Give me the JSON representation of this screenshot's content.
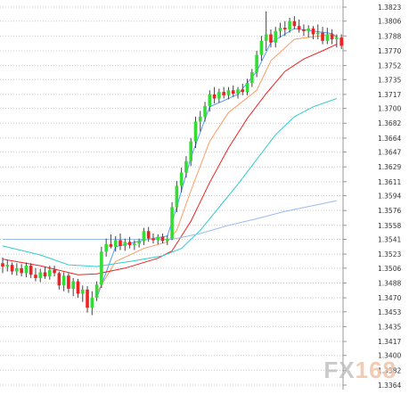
{
  "chart_data": {
    "type": "candlestick",
    "y_axis": {
      "position": "right",
      "tick_labels": [
        "1.3823",
        "1.3806",
        "1.3788",
        "1.3770",
        "1.3752",
        "1.3735",
        "1.3717",
        "1.3700",
        "1.3682",
        "1.3664",
        "1.3647",
        "1.3629",
        "1.3611",
        "1.3594",
        "1.3576",
        "1.3558",
        "1.3541",
        "1.3523",
        "1.3506",
        "1.3488",
        "1.3470",
        "1.3453",
        "1.3435",
        "1.3417",
        "1.3400",
        "1.3382",
        "1.3364"
      ],
      "ylim": [
        1.3364,
        1.3823
      ]
    },
    "grid": "horizontal dotted",
    "colors": {
      "up_body": "#33dd33",
      "down_body": "#ee2222",
      "wick": "#444444",
      "ma_fast": "#5599ff",
      "ma_mid": "#ff9966",
      "ma_slow": "#ee2222",
      "ma_long": "#33cccc",
      "ma_longest": "#99bbee",
      "grid": "#cccccc"
    },
    "candles": [
      [
        1.3512,
        1.3519,
        1.35,
        1.3508
      ],
      [
        1.3508,
        1.3516,
        1.3502,
        1.351
      ],
      [
        1.351,
        1.3513,
        1.3498,
        1.3502
      ],
      [
        1.3502,
        1.3512,
        1.3497,
        1.3506
      ],
      [
        1.3506,
        1.3511,
        1.3496,
        1.35
      ],
      [
        1.35,
        1.3513,
        1.3495,
        1.3509
      ],
      [
        1.3509,
        1.3512,
        1.3494,
        1.3498
      ],
      [
        1.3498,
        1.3506,
        1.349,
        1.3494
      ],
      [
        1.3494,
        1.3505,
        1.3489,
        1.3501
      ],
      [
        1.3501,
        1.3508,
        1.3493,
        1.3496
      ],
      [
        1.3496,
        1.3509,
        1.3492,
        1.3504
      ],
      [
        1.3504,
        1.3509,
        1.3496,
        1.35
      ],
      [
        1.35,
        1.3502,
        1.348,
        1.3485
      ],
      [
        1.3485,
        1.3501,
        1.3478,
        1.3497
      ],
      [
        1.3497,
        1.35,
        1.3476,
        1.3481
      ],
      [
        1.3481,
        1.3494,
        1.3472,
        1.349
      ],
      [
        1.349,
        1.3493,
        1.347,
        1.3475
      ],
      [
        1.3475,
        1.3485,
        1.3465,
        1.348
      ],
      [
        1.348,
        1.3484,
        1.3452,
        1.3458
      ],
      [
        1.3458,
        1.3478,
        1.3449,
        1.347
      ],
      [
        1.347,
        1.349,
        1.3466,
        1.3486
      ],
      [
        1.3486,
        1.3532,
        1.3482,
        1.3526
      ],
      [
        1.3526,
        1.3542,
        1.352,
        1.3535
      ],
      [
        1.3535,
        1.3547,
        1.353,
        1.3532
      ],
      [
        1.3532,
        1.3545,
        1.3526,
        1.354
      ],
      [
        1.354,
        1.3548,
        1.3528,
        1.3533
      ],
      [
        1.3533,
        1.3542,
        1.3527,
        1.3538
      ],
      [
        1.3538,
        1.3544,
        1.353,
        1.3534
      ],
      [
        1.3534,
        1.354,
        1.3528,
        1.3536
      ],
      [
        1.3536,
        1.3542,
        1.3531,
        1.3539
      ],
      [
        1.3539,
        1.3555,
        1.3534,
        1.3551
      ],
      [
        1.3551,
        1.3556,
        1.3538,
        1.3542
      ],
      [
        1.3542,
        1.3548,
        1.3536,
        1.354
      ],
      [
        1.354,
        1.3547,
        1.3535,
        1.3544
      ],
      [
        1.3544,
        1.3548,
        1.3536,
        1.3539
      ],
      [
        1.3539,
        1.3546,
        1.3534,
        1.3542
      ],
      [
        1.3542,
        1.3586,
        1.354,
        1.358
      ],
      [
        1.358,
        1.3612,
        1.3574,
        1.3606
      ],
      [
        1.3606,
        1.3628,
        1.3598,
        1.3622
      ],
      [
        1.3622,
        1.3642,
        1.3616,
        1.3636
      ],
      [
        1.3636,
        1.3664,
        1.363,
        1.366
      ],
      [
        1.366,
        1.369,
        1.3652,
        1.3684
      ],
      [
        1.3684,
        1.3697,
        1.3672,
        1.369
      ],
      [
        1.369,
        1.3708,
        1.3684,
        1.3703
      ],
      [
        1.3703,
        1.3722,
        1.3696,
        1.3717
      ],
      [
        1.3717,
        1.3726,
        1.3706,
        1.3712
      ],
      [
        1.3712,
        1.3724,
        1.3707,
        1.372
      ],
      [
        1.372,
        1.3726,
        1.3712,
        1.3716
      ],
      [
        1.3716,
        1.3726,
        1.3711,
        1.3722
      ],
      [
        1.3722,
        1.3728,
        1.3714,
        1.3718
      ],
      [
        1.3718,
        1.3726,
        1.3712,
        1.3723
      ],
      [
        1.3723,
        1.373,
        1.3716,
        1.372
      ],
      [
        1.372,
        1.3736,
        1.3716,
        1.3731
      ],
      [
        1.3731,
        1.3748,
        1.3726,
        1.3744
      ],
      [
        1.3744,
        1.377,
        1.3738,
        1.3765
      ],
      [
        1.3765,
        1.3788,
        1.3758,
        1.3782
      ],
      [
        1.3782,
        1.3818,
        1.377,
        1.379
      ],
      [
        1.379,
        1.3796,
        1.3774,
        1.378
      ],
      [
        1.378,
        1.3799,
        1.3774,
        1.3794
      ],
      [
        1.3794,
        1.3804,
        1.3786,
        1.3798
      ],
      [
        1.3798,
        1.3806,
        1.3788,
        1.3796
      ],
      [
        1.3796,
        1.381,
        1.3792,
        1.3806
      ],
      [
        1.3806,
        1.3812,
        1.3796,
        1.38
      ],
      [
        1.38,
        1.3808,
        1.3792,
        1.3796
      ],
      [
        1.3796,
        1.3802,
        1.3788,
        1.3794
      ],
      [
        1.3794,
        1.3801,
        1.3786,
        1.3797
      ],
      [
        1.3797,
        1.38,
        1.3784,
        1.379
      ],
      [
        1.379,
        1.3802,
        1.3784,
        1.3792
      ],
      [
        1.3792,
        1.3799,
        1.3778,
        1.3782
      ],
      [
        1.3782,
        1.3798,
        1.3778,
        1.379
      ],
      [
        1.379,
        1.3796,
        1.3778,
        1.3784
      ],
      [
        1.3784,
        1.379,
        1.3774,
        1.3786
      ],
      [
        1.3786,
        1.379,
        1.3772,
        1.3776
      ]
    ],
    "moving_averages": [
      {
        "color_key": "ma_fast",
        "values": [
          [
            20,
            1.347
          ],
          [
            24,
            1.3532
          ],
          [
            30,
            1.354
          ],
          [
            35,
            1.3545
          ],
          [
            37,
            1.358
          ],
          [
            40,
            1.364
          ],
          [
            44,
            1.3702
          ],
          [
            50,
            1.3717
          ],
          [
            54,
            1.3745
          ],
          [
            57,
            1.378
          ],
          [
            62,
            1.3797
          ],
          [
            70,
            1.3791
          ],
          [
            71,
            1.3787
          ]
        ]
      },
      {
        "color_key": "ma_mid",
        "values": [
          [
            20,
            1.3476
          ],
          [
            24,
            1.3514
          ],
          [
            30,
            1.353
          ],
          [
            35,
            1.3538
          ],
          [
            37,
            1.3552
          ],
          [
            40,
            1.36
          ],
          [
            44,
            1.366
          ],
          [
            48,
            1.3695
          ],
          [
            54,
            1.3722
          ],
          [
            57,
            1.3758
          ],
          [
            62,
            1.3784
          ],
          [
            70,
            1.379
          ],
          [
            71,
            1.3786
          ]
        ]
      },
      {
        "color_key": "ma_slow",
        "values": [
          [
            0,
            1.3517
          ],
          [
            8,
            1.3509
          ],
          [
            16,
            1.3498
          ],
          [
            20,
            1.3499
          ],
          [
            26,
            1.3506
          ],
          [
            33,
            1.3518
          ],
          [
            36,
            1.3527
          ],
          [
            40,
            1.3563
          ],
          [
            44,
            1.361
          ],
          [
            48,
            1.3652
          ],
          [
            52,
            1.3688
          ],
          [
            56,
            1.3718
          ],
          [
            60,
            1.3745
          ],
          [
            64,
            1.376
          ],
          [
            68,
            1.377
          ],
          [
            71,
            1.3778
          ]
        ]
      },
      {
        "color_key": "ma_long",
        "values": [
          [
            0,
            1.3533
          ],
          [
            8,
            1.3522
          ],
          [
            14,
            1.351
          ],
          [
            20,
            1.3508
          ],
          [
            28,
            1.3515
          ],
          [
            34,
            1.3521
          ],
          [
            38,
            1.353
          ],
          [
            42,
            1.3552
          ],
          [
            46,
            1.358
          ],
          [
            50,
            1.3608
          ],
          [
            54,
            1.3638
          ],
          [
            58,
            1.3668
          ],
          [
            62,
            1.369
          ],
          [
            66,
            1.3702
          ],
          [
            71,
            1.3712
          ]
        ]
      },
      {
        "color_key": "ma_longest",
        "values": [
          [
            0,
            1.3541
          ],
          [
            12,
            1.3541
          ],
          [
            20,
            1.3541
          ],
          [
            30,
            1.3541
          ],
          [
            36,
            1.3541
          ],
          [
            42,
            1.3548
          ],
          [
            48,
            1.3558
          ],
          [
            54,
            1.3566
          ],
          [
            60,
            1.3575
          ],
          [
            66,
            1.3582
          ],
          [
            71,
            1.3588
          ]
        ]
      }
    ]
  },
  "watermark": {
    "part1": "FX",
    "part2": "168"
  }
}
